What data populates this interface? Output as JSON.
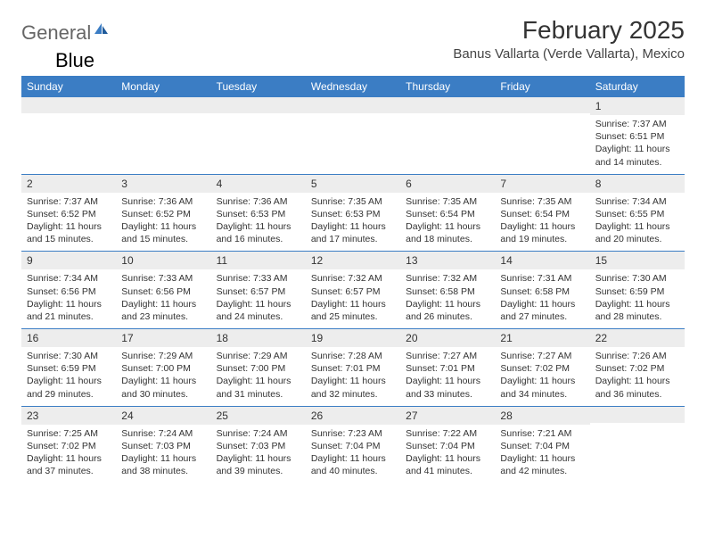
{
  "logo": {
    "text1": "General",
    "text2": "Blue"
  },
  "title": "February 2025",
  "subtitle": "Banus Vallarta (Verde Vallarta), Mexico",
  "colors": {
    "header_bg": "#3b7dc4",
    "header_text": "#ffffff",
    "daynum_bg": "#ededed",
    "border": "#3b7dc4",
    "text": "#333333",
    "background": "#ffffff"
  },
  "weekdays": [
    "Sunday",
    "Monday",
    "Tuesday",
    "Wednesday",
    "Thursday",
    "Friday",
    "Saturday"
  ],
  "weeks": [
    [
      {
        "n": "",
        "lines": []
      },
      {
        "n": "",
        "lines": []
      },
      {
        "n": "",
        "lines": []
      },
      {
        "n": "",
        "lines": []
      },
      {
        "n": "",
        "lines": []
      },
      {
        "n": "",
        "lines": []
      },
      {
        "n": "1",
        "lines": [
          "Sunrise: 7:37 AM",
          "Sunset: 6:51 PM",
          "Daylight: 11 hours and 14 minutes."
        ]
      }
    ],
    [
      {
        "n": "2",
        "lines": [
          "Sunrise: 7:37 AM",
          "Sunset: 6:52 PM",
          "Daylight: 11 hours and 15 minutes."
        ]
      },
      {
        "n": "3",
        "lines": [
          "Sunrise: 7:36 AM",
          "Sunset: 6:52 PM",
          "Daylight: 11 hours and 15 minutes."
        ]
      },
      {
        "n": "4",
        "lines": [
          "Sunrise: 7:36 AM",
          "Sunset: 6:53 PM",
          "Daylight: 11 hours and 16 minutes."
        ]
      },
      {
        "n": "5",
        "lines": [
          "Sunrise: 7:35 AM",
          "Sunset: 6:53 PM",
          "Daylight: 11 hours and 17 minutes."
        ]
      },
      {
        "n": "6",
        "lines": [
          "Sunrise: 7:35 AM",
          "Sunset: 6:54 PM",
          "Daylight: 11 hours and 18 minutes."
        ]
      },
      {
        "n": "7",
        "lines": [
          "Sunrise: 7:35 AM",
          "Sunset: 6:54 PM",
          "Daylight: 11 hours and 19 minutes."
        ]
      },
      {
        "n": "8",
        "lines": [
          "Sunrise: 7:34 AM",
          "Sunset: 6:55 PM",
          "Daylight: 11 hours and 20 minutes."
        ]
      }
    ],
    [
      {
        "n": "9",
        "lines": [
          "Sunrise: 7:34 AM",
          "Sunset: 6:56 PM",
          "Daylight: 11 hours and 21 minutes."
        ]
      },
      {
        "n": "10",
        "lines": [
          "Sunrise: 7:33 AM",
          "Sunset: 6:56 PM",
          "Daylight: 11 hours and 23 minutes."
        ]
      },
      {
        "n": "11",
        "lines": [
          "Sunrise: 7:33 AM",
          "Sunset: 6:57 PM",
          "Daylight: 11 hours and 24 minutes."
        ]
      },
      {
        "n": "12",
        "lines": [
          "Sunrise: 7:32 AM",
          "Sunset: 6:57 PM",
          "Daylight: 11 hours and 25 minutes."
        ]
      },
      {
        "n": "13",
        "lines": [
          "Sunrise: 7:32 AM",
          "Sunset: 6:58 PM",
          "Daylight: 11 hours and 26 minutes."
        ]
      },
      {
        "n": "14",
        "lines": [
          "Sunrise: 7:31 AM",
          "Sunset: 6:58 PM",
          "Daylight: 11 hours and 27 minutes."
        ]
      },
      {
        "n": "15",
        "lines": [
          "Sunrise: 7:30 AM",
          "Sunset: 6:59 PM",
          "Daylight: 11 hours and 28 minutes."
        ]
      }
    ],
    [
      {
        "n": "16",
        "lines": [
          "Sunrise: 7:30 AM",
          "Sunset: 6:59 PM",
          "Daylight: 11 hours and 29 minutes."
        ]
      },
      {
        "n": "17",
        "lines": [
          "Sunrise: 7:29 AM",
          "Sunset: 7:00 PM",
          "Daylight: 11 hours and 30 minutes."
        ]
      },
      {
        "n": "18",
        "lines": [
          "Sunrise: 7:29 AM",
          "Sunset: 7:00 PM",
          "Daylight: 11 hours and 31 minutes."
        ]
      },
      {
        "n": "19",
        "lines": [
          "Sunrise: 7:28 AM",
          "Sunset: 7:01 PM",
          "Daylight: 11 hours and 32 minutes."
        ]
      },
      {
        "n": "20",
        "lines": [
          "Sunrise: 7:27 AM",
          "Sunset: 7:01 PM",
          "Daylight: 11 hours and 33 minutes."
        ]
      },
      {
        "n": "21",
        "lines": [
          "Sunrise: 7:27 AM",
          "Sunset: 7:02 PM",
          "Daylight: 11 hours and 34 minutes."
        ]
      },
      {
        "n": "22",
        "lines": [
          "Sunrise: 7:26 AM",
          "Sunset: 7:02 PM",
          "Daylight: 11 hours and 36 minutes."
        ]
      }
    ],
    [
      {
        "n": "23",
        "lines": [
          "Sunrise: 7:25 AM",
          "Sunset: 7:02 PM",
          "Daylight: 11 hours and 37 minutes."
        ]
      },
      {
        "n": "24",
        "lines": [
          "Sunrise: 7:24 AM",
          "Sunset: 7:03 PM",
          "Daylight: 11 hours and 38 minutes."
        ]
      },
      {
        "n": "25",
        "lines": [
          "Sunrise: 7:24 AM",
          "Sunset: 7:03 PM",
          "Daylight: 11 hours and 39 minutes."
        ]
      },
      {
        "n": "26",
        "lines": [
          "Sunrise: 7:23 AM",
          "Sunset: 7:04 PM",
          "Daylight: 11 hours and 40 minutes."
        ]
      },
      {
        "n": "27",
        "lines": [
          "Sunrise: 7:22 AM",
          "Sunset: 7:04 PM",
          "Daylight: 11 hours and 41 minutes."
        ]
      },
      {
        "n": "28",
        "lines": [
          "Sunrise: 7:21 AM",
          "Sunset: 7:04 PM",
          "Daylight: 11 hours and 42 minutes."
        ]
      },
      {
        "n": "",
        "lines": []
      }
    ]
  ]
}
